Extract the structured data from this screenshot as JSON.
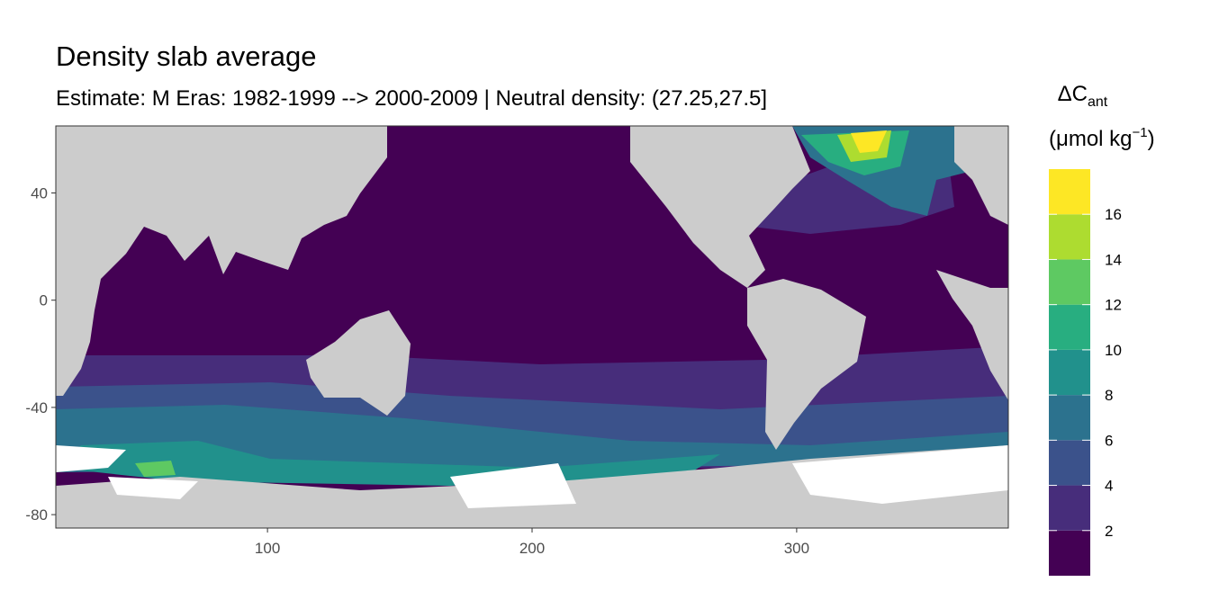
{
  "chart_data": {
    "type": "map",
    "title": "Density slab average",
    "subtitle": "Estimate: M Eras: 1982-1999 --> 2000-2009 | Neutral density: (27.25,27.5]",
    "xlim": [
      20,
      380
    ],
    "ylim": [
      -85,
      65
    ],
    "xticks": [
      100,
      200,
      300
    ],
    "yticks": [
      -80,
      -40,
      0,
      40
    ],
    "colorbar": {
      "title_main": "ΔC",
      "title_sub": "ant",
      "unit_main": "(μmol kg",
      "unit_sup": "−1",
      "unit_end": ")",
      "bins": [
        0,
        2,
        4,
        6,
        8,
        10,
        12,
        14,
        16,
        18
      ],
      "colors": [
        "#440154",
        "#472d7b",
        "#3b528b",
        "#2c728e",
        "#21918c",
        "#28ae80",
        "#5ec962",
        "#addc30",
        "#fde725"
      ],
      "ticks": [
        2,
        4,
        6,
        8,
        10,
        12,
        14,
        16
      ]
    }
  }
}
